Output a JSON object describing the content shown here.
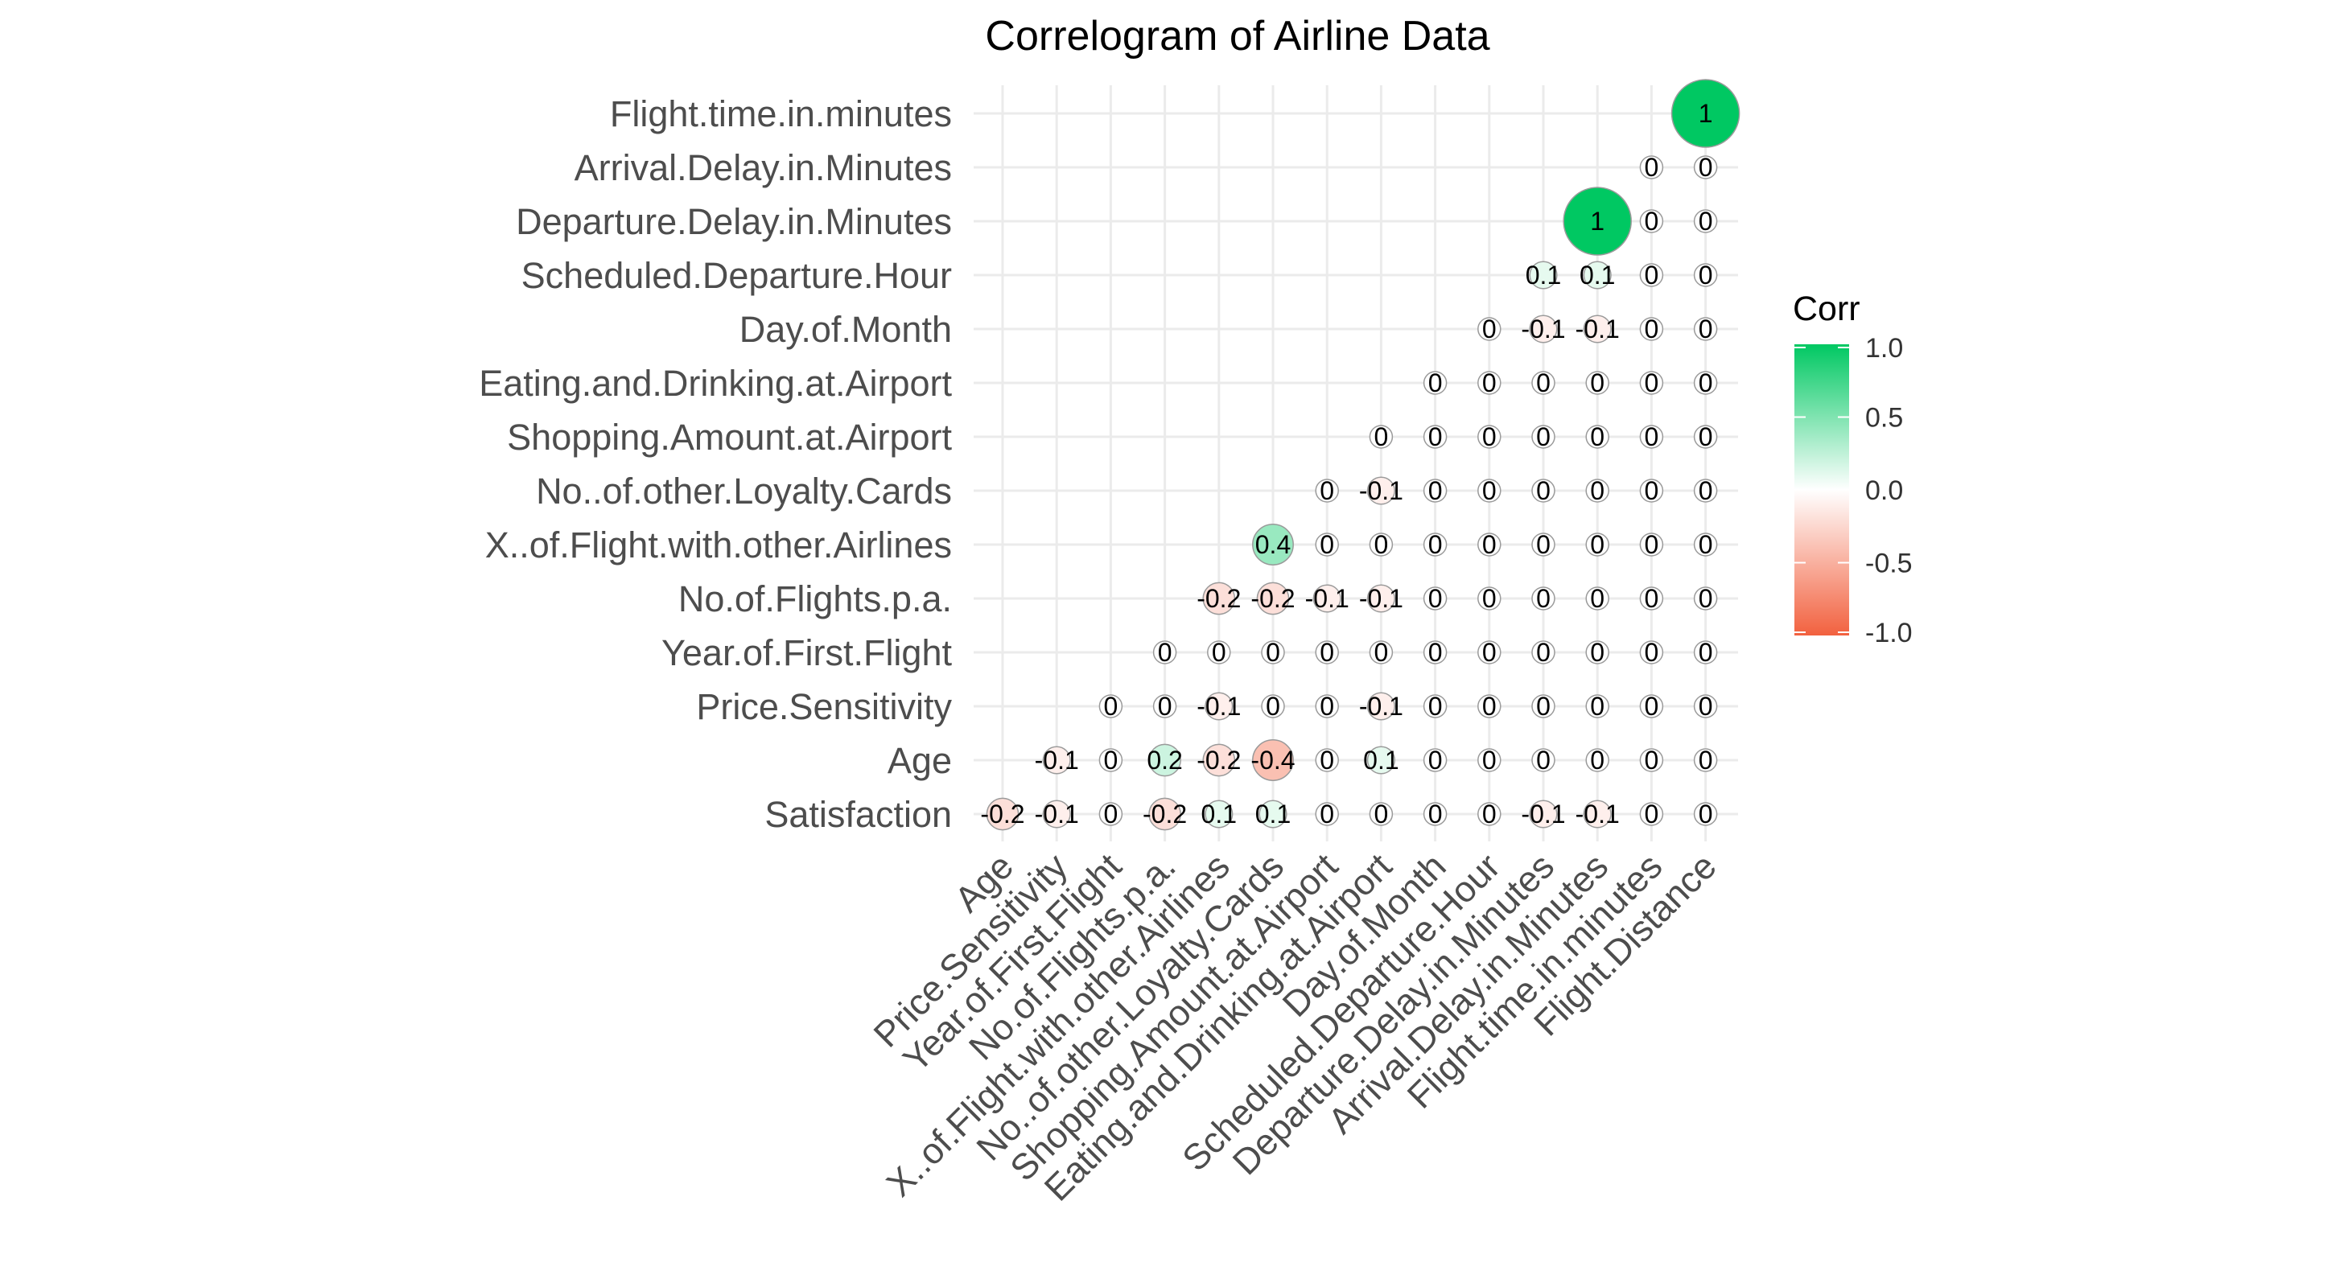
{
  "chart_data": {
    "type": "heatmap",
    "title": "Correlogram of Airline Data",
    "x_labels": [
      "Age",
      "Price.Sensitivity",
      "Year.of.First.Flight",
      "No.of.Flights.p.a.",
      "X..of.Flight.with.other.Airlines",
      "No..of.other.Loyalty.Cards",
      "Shopping.Amount.at.Airport",
      "Eating.and.Drinking.at.Airport",
      "Day.of.Month",
      "Scheduled.Departure.Hour",
      "Departure.Delay.in.Minutes",
      "Arrival.Delay.in.Minutes",
      "Flight.time.in.minutes",
      "Flight.Distance"
    ],
    "y_labels": [
      "Satisfaction",
      "Age",
      "Price.Sensitivity",
      "Year.of.First.Flight",
      "No.of.Flights.p.a.",
      "X..of.Flight.with.other.Airlines",
      "No..of.other.Loyalty.Cards",
      "Shopping.Amount.at.Airport",
      "Eating.and.Drinking.at.Airport",
      "Day.of.Month",
      "Scheduled.Departure.Hour",
      "Departure.Delay.in.Minutes",
      "Arrival.Delay.in.Minutes",
      "Flight.time.in.minutes"
    ],
    "values": [
      [
        -0.2,
        -0.1,
        0,
        -0.2,
        0.1,
        0.1,
        0,
        0,
        0,
        0,
        -0.1,
        -0.1,
        0,
        0
      ],
      [
        null,
        -0.1,
        0,
        0.2,
        -0.2,
        -0.4,
        0,
        0.1,
        0,
        0,
        0,
        0,
        0,
        0
      ],
      [
        null,
        null,
        0,
        0,
        -0.1,
        0,
        0,
        -0.1,
        0,
        0,
        0,
        0,
        0,
        0
      ],
      [
        null,
        null,
        null,
        0,
        0,
        0,
        0,
        0,
        0,
        0,
        0,
        0,
        0,
        0
      ],
      [
        null,
        null,
        null,
        null,
        -0.2,
        -0.2,
        -0.1,
        -0.1,
        0,
        0,
        0,
        0,
        0,
        0
      ],
      [
        null,
        null,
        null,
        null,
        null,
        0.4,
        0,
        0,
        0,
        0,
        0,
        0,
        0,
        0
      ],
      [
        null,
        null,
        null,
        null,
        null,
        null,
        0,
        -0.1,
        0,
        0,
        0,
        0,
        0,
        0
      ],
      [
        null,
        null,
        null,
        null,
        null,
        null,
        null,
        0,
        0,
        0,
        0,
        0,
        0,
        0
      ],
      [
        null,
        null,
        null,
        null,
        null,
        null,
        null,
        null,
        0,
        0,
        0,
        0,
        0,
        0
      ],
      [
        null,
        null,
        null,
        null,
        null,
        null,
        null,
        null,
        null,
        0,
        -0.1,
        -0.1,
        0,
        0
      ],
      [
        null,
        null,
        null,
        null,
        null,
        null,
        null,
        null,
        null,
        null,
        0.1,
        0.1,
        0,
        0
      ],
      [
        null,
        null,
        null,
        null,
        null,
        null,
        null,
        null,
        null,
        null,
        null,
        1,
        0,
        0
      ],
      [
        null,
        null,
        null,
        null,
        null,
        null,
        null,
        null,
        null,
        null,
        null,
        null,
        0,
        0
      ],
      [
        null,
        null,
        null,
        null,
        null,
        null,
        null,
        null,
        null,
        null,
        null,
        null,
        null,
        1
      ]
    ],
    "legend": {
      "title": "Corr",
      "position": "right",
      "ticks": [
        "1.0",
        "0.5",
        "0.0",
        "-0.5",
        "-1.0"
      ],
      "range": [
        -1,
        1
      ]
    },
    "colors": {
      "low": "#f2613f",
      "mid": "#ffffff",
      "high": "#00c862"
    },
    "grid": true
  }
}
